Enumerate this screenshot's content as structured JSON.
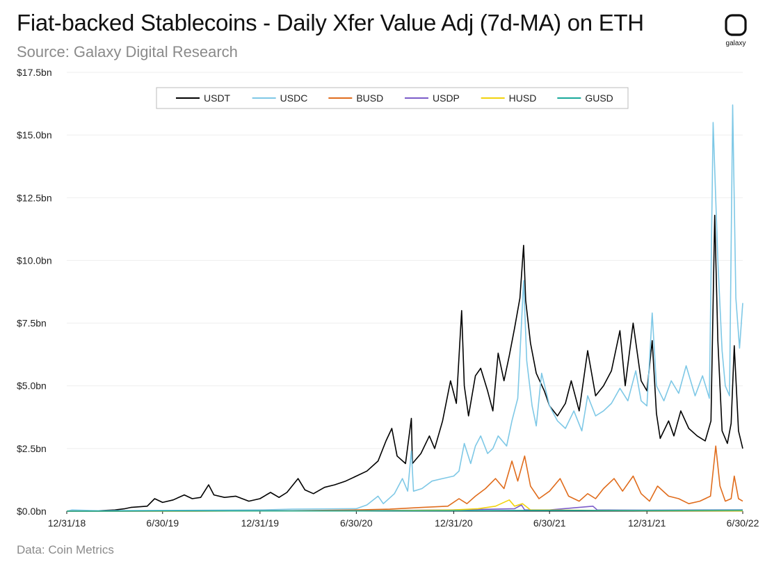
{
  "header": {
    "title": "Fiat-backed Stablecoins - Daily Xfer Value Adj (7d-MA) on ETH",
    "subtitle": "Source: Galaxy Digital Research",
    "logo_text": "galaxy"
  },
  "footer": {
    "source": "Data: Coin Metrics"
  },
  "chart_data": {
    "type": "line",
    "title": "Fiat-backed Stablecoins - Daily Xfer Value Adj (7d-MA) on ETH",
    "subtitle": "Source: Galaxy Digital Research",
    "xlabel": "",
    "ylabel": "",
    "xlim": [
      "2018-12-31",
      "2022-06-30"
    ],
    "ylim": [
      0,
      17.5
    ],
    "y_unit": "bn USD",
    "y_ticks": [
      0,
      2.5,
      5,
      7.5,
      10,
      12.5,
      15,
      17.5
    ],
    "y_tick_labels": [
      "$0.0bn",
      "$2.5bn",
      "$5.0bn",
      "$7.5bn",
      "$10.0bn",
      "$12.5bn",
      "$15.0bn",
      "$17.5bn"
    ],
    "x_ticks": [
      "2018-12-31",
      "2019-06-30",
      "2019-12-31",
      "2020-06-30",
      "2020-12-31",
      "2021-06-30",
      "2021-12-31",
      "2022-06-30"
    ],
    "x_tick_labels": [
      "12/31/18",
      "6/30/19",
      "12/31/19",
      "6/30/20",
      "12/31/20",
      "6/30/21",
      "12/31/21",
      "6/30/22"
    ],
    "grid": "horizontal",
    "legend_position": "top",
    "series": [
      {
        "name": "USDT",
        "color": "#000000",
        "points": [
          [
            "2018-12-31",
            0.0
          ],
          [
            "2019-03-01",
            0.02
          ],
          [
            "2019-04-01",
            0.05
          ],
          [
            "2019-04-20",
            0.1
          ],
          [
            "2019-05-01",
            0.15
          ],
          [
            "2019-06-01",
            0.2
          ],
          [
            "2019-06-15",
            0.5
          ],
          [
            "2019-06-30",
            0.35
          ],
          [
            "2019-07-20",
            0.45
          ],
          [
            "2019-08-10",
            0.65
          ],
          [
            "2019-08-25",
            0.5
          ],
          [
            "2019-09-10",
            0.55
          ],
          [
            "2019-09-25",
            1.05
          ],
          [
            "2019-10-05",
            0.65
          ],
          [
            "2019-10-25",
            0.55
          ],
          [
            "2019-11-15",
            0.6
          ],
          [
            "2019-12-10",
            0.4
          ],
          [
            "2019-12-31",
            0.5
          ],
          [
            "2020-01-20",
            0.75
          ],
          [
            "2020-02-05",
            0.55
          ],
          [
            "2020-02-20",
            0.75
          ],
          [
            "2020-03-12",
            1.3
          ],
          [
            "2020-03-25",
            0.85
          ],
          [
            "2020-04-10",
            0.7
          ],
          [
            "2020-05-01",
            0.95
          ],
          [
            "2020-05-20",
            1.05
          ],
          [
            "2020-06-10",
            1.2
          ],
          [
            "2020-06-30",
            1.4
          ],
          [
            "2020-07-20",
            1.6
          ],
          [
            "2020-08-10",
            2.0
          ],
          [
            "2020-08-25",
            2.8
          ],
          [
            "2020-09-05",
            3.3
          ],
          [
            "2020-09-15",
            2.2
          ],
          [
            "2020-10-01",
            1.9
          ],
          [
            "2020-10-12",
            3.7
          ],
          [
            "2020-10-14",
            1.9
          ],
          [
            "2020-10-30",
            2.3
          ],
          [
            "2020-11-15",
            3.0
          ],
          [
            "2020-11-25",
            2.5
          ],
          [
            "2020-12-10",
            3.6
          ],
          [
            "2020-12-25",
            5.2
          ],
          [
            "2021-01-05",
            4.3
          ],
          [
            "2021-01-15",
            8.0
          ],
          [
            "2021-01-20",
            5.0
          ],
          [
            "2021-01-28",
            3.8
          ],
          [
            "2021-02-10",
            5.4
          ],
          [
            "2021-02-20",
            5.7
          ],
          [
            "2021-03-05",
            4.8
          ],
          [
            "2021-03-15",
            4.0
          ],
          [
            "2021-03-25",
            6.3
          ],
          [
            "2021-04-05",
            5.2
          ],
          [
            "2021-04-15",
            6.2
          ],
          [
            "2021-04-25",
            7.3
          ],
          [
            "2021-05-05",
            8.5
          ],
          [
            "2021-05-12",
            10.6
          ],
          [
            "2021-05-16",
            8.4
          ],
          [
            "2021-05-25",
            6.7
          ],
          [
            "2021-06-05",
            5.5
          ],
          [
            "2021-06-20",
            4.8
          ],
          [
            "2021-06-30",
            4.2
          ],
          [
            "2021-07-15",
            3.8
          ],
          [
            "2021-07-30",
            4.3
          ],
          [
            "2021-08-10",
            5.2
          ],
          [
            "2021-08-25",
            4.0
          ],
          [
            "2021-09-10",
            6.4
          ],
          [
            "2021-09-25",
            4.6
          ],
          [
            "2021-10-10",
            5.0
          ],
          [
            "2021-10-25",
            5.6
          ],
          [
            "2021-11-10",
            7.2
          ],
          [
            "2021-11-20",
            5.0
          ],
          [
            "2021-12-05",
            7.5
          ],
          [
            "2021-12-20",
            5.2
          ],
          [
            "2021-12-31",
            4.8
          ],
          [
            "2022-01-10",
            6.8
          ],
          [
            "2022-01-18",
            3.9
          ],
          [
            "2022-01-25",
            2.9
          ],
          [
            "2022-02-10",
            3.6
          ],
          [
            "2022-02-20",
            3.0
          ],
          [
            "2022-03-05",
            4.0
          ],
          [
            "2022-03-20",
            3.3
          ],
          [
            "2022-04-05",
            3.0
          ],
          [
            "2022-04-20",
            2.8
          ],
          [
            "2022-05-01",
            3.6
          ],
          [
            "2022-05-08",
            11.8
          ],
          [
            "2022-05-14",
            6.8
          ],
          [
            "2022-05-22",
            3.2
          ],
          [
            "2022-06-01",
            2.7
          ],
          [
            "2022-06-08",
            3.5
          ],
          [
            "2022-06-14",
            6.6
          ],
          [
            "2022-06-22",
            3.2
          ],
          [
            "2022-06-30",
            2.5
          ]
        ]
      },
      {
        "name": "USDC",
        "color": "#7ec8e6",
        "points": [
          [
            "2018-12-31",
            0.0
          ],
          [
            "2019-01-10",
            0.05
          ],
          [
            "2019-03-01",
            0.02
          ],
          [
            "2019-06-30",
            0.03
          ],
          [
            "2019-12-31",
            0.05
          ],
          [
            "2020-03-01",
            0.08
          ],
          [
            "2020-06-30",
            0.1
          ],
          [
            "2020-07-20",
            0.25
          ],
          [
            "2020-08-10",
            0.6
          ],
          [
            "2020-08-20",
            0.3
          ],
          [
            "2020-09-10",
            0.7
          ],
          [
            "2020-09-25",
            1.3
          ],
          [
            "2020-10-05",
            0.8
          ],
          [
            "2020-10-12",
            2.4
          ],
          [
            "2020-10-16",
            0.8
          ],
          [
            "2020-11-01",
            0.9
          ],
          [
            "2020-11-20",
            1.2
          ],
          [
            "2020-12-10",
            1.3
          ],
          [
            "2020-12-31",
            1.4
          ],
          [
            "2021-01-10",
            1.6
          ],
          [
            "2021-01-20",
            2.7
          ],
          [
            "2021-02-01",
            1.9
          ],
          [
            "2021-02-10",
            2.6
          ],
          [
            "2021-02-20",
            3.0
          ],
          [
            "2021-03-05",
            2.3
          ],
          [
            "2021-03-15",
            2.5
          ],
          [
            "2021-03-25",
            3.0
          ],
          [
            "2021-04-10",
            2.6
          ],
          [
            "2021-04-20",
            3.6
          ],
          [
            "2021-05-01",
            4.5
          ],
          [
            "2021-05-12",
            9.2
          ],
          [
            "2021-05-18",
            6.0
          ],
          [
            "2021-05-28",
            4.2
          ],
          [
            "2021-06-05",
            3.4
          ],
          [
            "2021-06-15",
            5.5
          ],
          [
            "2021-06-30",
            4.2
          ],
          [
            "2021-07-15",
            3.6
          ],
          [
            "2021-07-30",
            3.3
          ],
          [
            "2021-08-15",
            4.0
          ],
          [
            "2021-08-30",
            3.2
          ],
          [
            "2021-09-10",
            4.6
          ],
          [
            "2021-09-25",
            3.8
          ],
          [
            "2021-10-10",
            4.0
          ],
          [
            "2021-10-25",
            4.3
          ],
          [
            "2021-11-10",
            4.9
          ],
          [
            "2021-11-25",
            4.4
          ],
          [
            "2021-12-10",
            5.6
          ],
          [
            "2021-12-20",
            4.4
          ],
          [
            "2021-12-31",
            4.2
          ],
          [
            "2022-01-10",
            7.9
          ],
          [
            "2022-01-18",
            5.0
          ],
          [
            "2022-02-01",
            4.4
          ],
          [
            "2022-02-15",
            5.2
          ],
          [
            "2022-03-01",
            4.7
          ],
          [
            "2022-03-15",
            5.8
          ],
          [
            "2022-04-01",
            4.6
          ],
          [
            "2022-04-15",
            5.4
          ],
          [
            "2022-04-28",
            4.5
          ],
          [
            "2022-05-05",
            15.5
          ],
          [
            "2022-05-14",
            10.0
          ],
          [
            "2022-05-22",
            6.4
          ],
          [
            "2022-05-28",
            5.0
          ],
          [
            "2022-06-05",
            4.6
          ],
          [
            "2022-06-11",
            16.2
          ],
          [
            "2022-06-17",
            8.5
          ],
          [
            "2022-06-24",
            6.5
          ],
          [
            "2022-06-30",
            8.3
          ]
        ]
      },
      {
        "name": "BUSD",
        "color": "#e06c1c",
        "points": [
          [
            "2018-12-31",
            0.0
          ],
          [
            "2019-09-01",
            0.0
          ],
          [
            "2020-03-01",
            0.02
          ],
          [
            "2020-06-30",
            0.05
          ],
          [
            "2020-09-01",
            0.08
          ],
          [
            "2020-11-01",
            0.15
          ],
          [
            "2020-12-20",
            0.2
          ],
          [
            "2021-01-10",
            0.5
          ],
          [
            "2021-01-25",
            0.3
          ],
          [
            "2021-02-10",
            0.6
          ],
          [
            "2021-03-01",
            0.9
          ],
          [
            "2021-03-20",
            1.3
          ],
          [
            "2021-04-05",
            0.9
          ],
          [
            "2021-04-20",
            2.0
          ],
          [
            "2021-05-01",
            1.2
          ],
          [
            "2021-05-14",
            2.2
          ],
          [
            "2021-05-25",
            1.0
          ],
          [
            "2021-06-10",
            0.5
          ],
          [
            "2021-06-30",
            0.8
          ],
          [
            "2021-07-20",
            1.3
          ],
          [
            "2021-08-05",
            0.6
          ],
          [
            "2021-08-25",
            0.4
          ],
          [
            "2021-09-10",
            0.7
          ],
          [
            "2021-09-25",
            0.5
          ],
          [
            "2021-10-10",
            0.9
          ],
          [
            "2021-10-30",
            1.3
          ],
          [
            "2021-11-15",
            0.8
          ],
          [
            "2021-12-05",
            1.4
          ],
          [
            "2021-12-20",
            0.7
          ],
          [
            "2022-01-05",
            0.4
          ],
          [
            "2022-01-20",
            1.0
          ],
          [
            "2022-02-10",
            0.6
          ],
          [
            "2022-03-01",
            0.5
          ],
          [
            "2022-03-20",
            0.3
          ],
          [
            "2022-04-10",
            0.4
          ],
          [
            "2022-04-30",
            0.6
          ],
          [
            "2022-05-10",
            2.6
          ],
          [
            "2022-05-18",
            1.0
          ],
          [
            "2022-05-28",
            0.4
          ],
          [
            "2022-06-08",
            0.5
          ],
          [
            "2022-06-14",
            1.4
          ],
          [
            "2022-06-22",
            0.5
          ],
          [
            "2022-06-30",
            0.4
          ]
        ]
      },
      {
        "name": "USDP",
        "color": "#7b5cc9",
        "points": [
          [
            "2018-12-31",
            0.0
          ],
          [
            "2020-06-30",
            0.02
          ],
          [
            "2021-01-01",
            0.05
          ],
          [
            "2021-04-25",
            0.1
          ],
          [
            "2021-05-08",
            0.25
          ],
          [
            "2021-05-14",
            0.05
          ],
          [
            "2021-06-30",
            0.05
          ],
          [
            "2021-09-20",
            0.2
          ],
          [
            "2021-09-28",
            0.05
          ],
          [
            "2021-12-31",
            0.04
          ],
          [
            "2022-06-30",
            0.05
          ]
        ]
      },
      {
        "name": "HUSD",
        "color": "#f2d20c",
        "points": [
          [
            "2018-12-31",
            0.0
          ],
          [
            "2020-06-30",
            0.01
          ],
          [
            "2020-12-31",
            0.05
          ],
          [
            "2021-02-15",
            0.1
          ],
          [
            "2021-03-20",
            0.2
          ],
          [
            "2021-04-15",
            0.45
          ],
          [
            "2021-04-25",
            0.2
          ],
          [
            "2021-05-10",
            0.3
          ],
          [
            "2021-05-25",
            0.05
          ],
          [
            "2021-12-31",
            0.02
          ],
          [
            "2022-06-30",
            0.01
          ]
        ]
      },
      {
        "name": "GUSD",
        "color": "#18a89a",
        "points": [
          [
            "2018-12-31",
            0.0
          ],
          [
            "2019-06-30",
            0.01
          ],
          [
            "2020-06-30",
            0.01
          ],
          [
            "2021-06-30",
            0.03
          ],
          [
            "2021-12-31",
            0.03
          ],
          [
            "2022-06-30",
            0.04
          ]
        ]
      }
    ]
  }
}
